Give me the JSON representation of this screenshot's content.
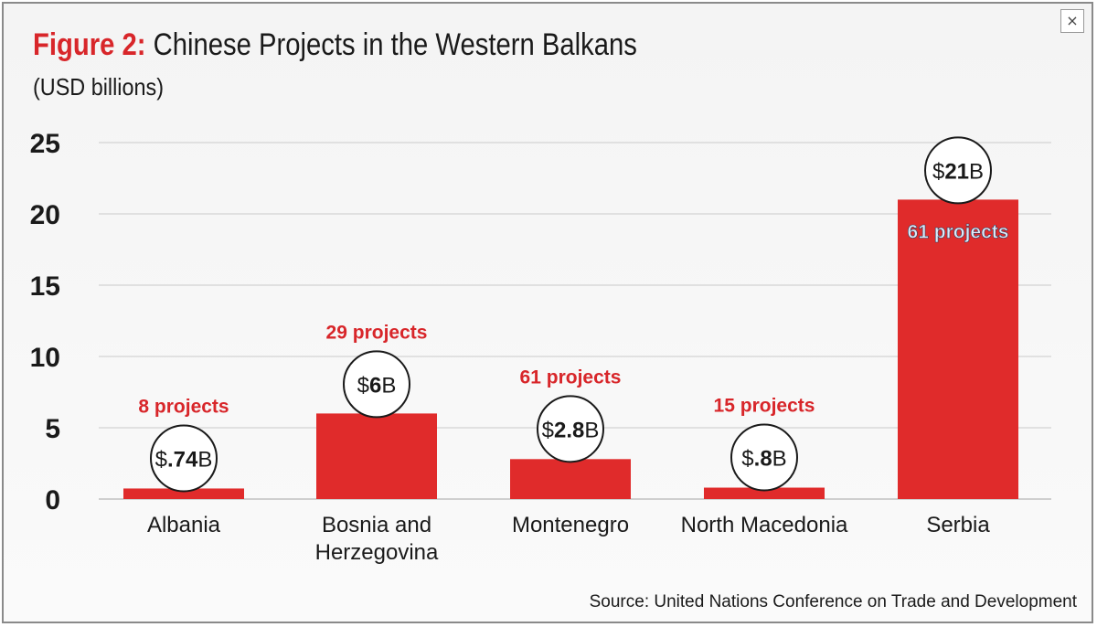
{
  "figure_label": "Figure 2:",
  "title_text": "Chinese Projects in the Western Balkans",
  "subtitle": "(USD billions)",
  "close_glyph": "×",
  "source": "Source: United Nations Conference on Trade and Development",
  "colors": {
    "bar": "#e02b2b",
    "accent_red": "#d8262a",
    "projects_label_on_bar": "#dce9f7",
    "grid": "#d9d9d9",
    "text": "#1a1a1a"
  },
  "chart_data": {
    "type": "bar",
    "categories": [
      "Albania",
      "Bosnia and Herzegovina",
      "Montenegro",
      "North Macedonia",
      "Serbia"
    ],
    "category_label_lines": [
      [
        "Albania"
      ],
      [
        "Bosnia and",
        "Herzegovina"
      ],
      [
        "Montenegro"
      ],
      [
        "North Macedonia"
      ],
      [
        "Serbia"
      ]
    ],
    "values": [
      0.74,
      6,
      2.8,
      0.8,
      21
    ],
    "value_labels": [
      {
        "prefix": "$",
        "num": ".74",
        "suffix": "B"
      },
      {
        "prefix": "$",
        "num": "6",
        "suffix": "B"
      },
      {
        "prefix": "$",
        "num": "2.8",
        "suffix": "B"
      },
      {
        "prefix": "$",
        "num": ".8",
        "suffix": "B"
      },
      {
        "prefix": "$",
        "num": "21",
        "suffix": "B"
      }
    ],
    "project_labels": [
      "8 projects",
      "29 projects",
      "61 projects",
      "15 projects",
      "61 projects"
    ],
    "project_label_inside_bar": [
      false,
      false,
      false,
      false,
      true
    ],
    "yticks": [
      0,
      5,
      10,
      15,
      20,
      25
    ],
    "ylim": [
      0,
      25
    ],
    "grid": true,
    "title": "Chinese Projects in the Western Balkans",
    "xlabel": "",
    "ylabel": ""
  }
}
